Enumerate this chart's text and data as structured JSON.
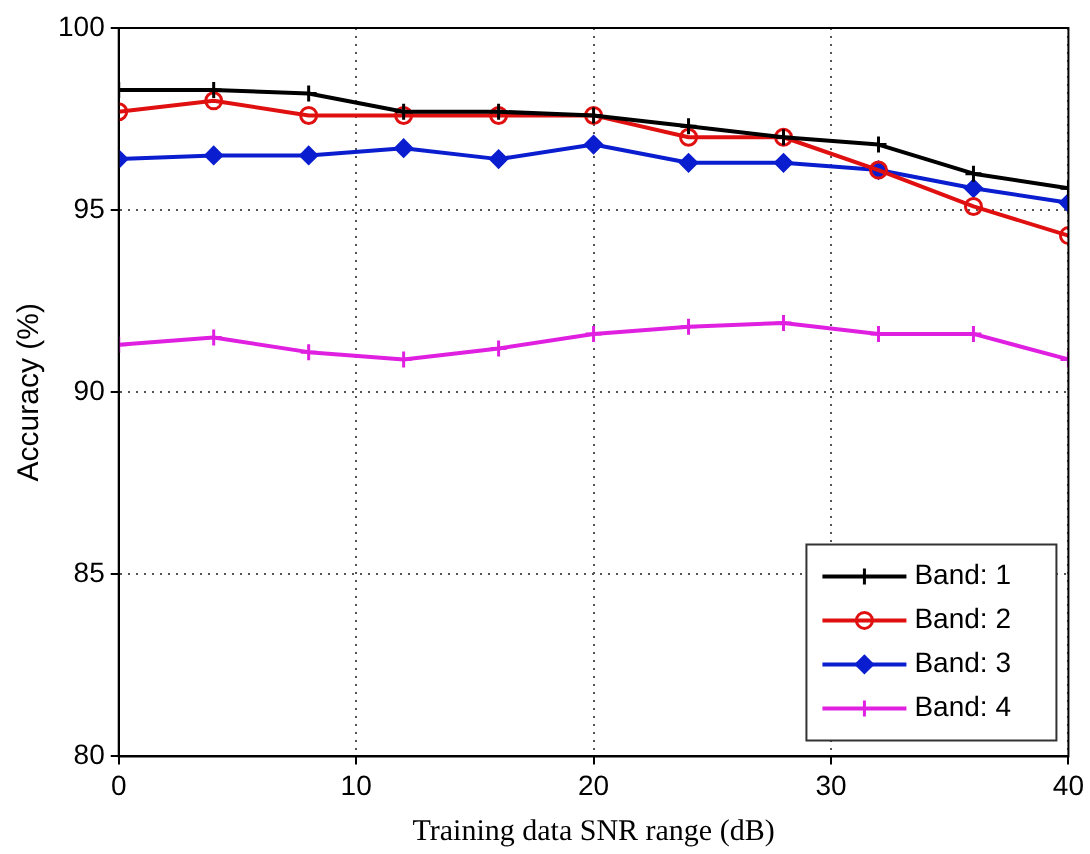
{
  "chart_data": {
    "type": "line",
    "xlabel": "Training data SNR range (dB)",
    "ylabel": "Accuracy (%)",
    "x": [
      0,
      4,
      8,
      12,
      16,
      20,
      24,
      28,
      32,
      36,
      40
    ],
    "xlim": [
      0,
      40
    ],
    "xticks": [
      0,
      10,
      20,
      30,
      40
    ],
    "ylim": [
      80,
      100
    ],
    "yticks": [
      80,
      85,
      90,
      95,
      100
    ],
    "grid": true,
    "legend": "bottom right",
    "line_style": "solid",
    "series": [
      {
        "name": "Band: 1",
        "color": "#000000",
        "marker": "cross",
        "values": [
          98.3,
          98.3,
          98.2,
          97.7,
          97.7,
          97.6,
          97.3,
          97.0,
          96.8,
          96.0,
          95.6
        ]
      },
      {
        "name": "Band: 2",
        "color": "#e01010",
        "marker": "circle",
        "values": [
          97.7,
          98.0,
          97.6,
          97.6,
          97.6,
          97.6,
          97.0,
          97.0,
          96.1,
          95.1,
          94.3
        ]
      },
      {
        "name": "Band: 3",
        "color": "#0a1ed0",
        "marker": "diamond",
        "values": [
          96.4,
          96.5,
          96.5,
          96.7,
          96.4,
          96.8,
          96.3,
          96.3,
          96.1,
          95.6,
          95.2
        ]
      },
      {
        "name": "Band: 4",
        "color": "#e020e0",
        "marker": "cross",
        "values": [
          91.3,
          91.5,
          91.1,
          90.9,
          91.2,
          91.6,
          91.8,
          91.9,
          91.6,
          91.6,
          90.9
        ]
      }
    ]
  }
}
